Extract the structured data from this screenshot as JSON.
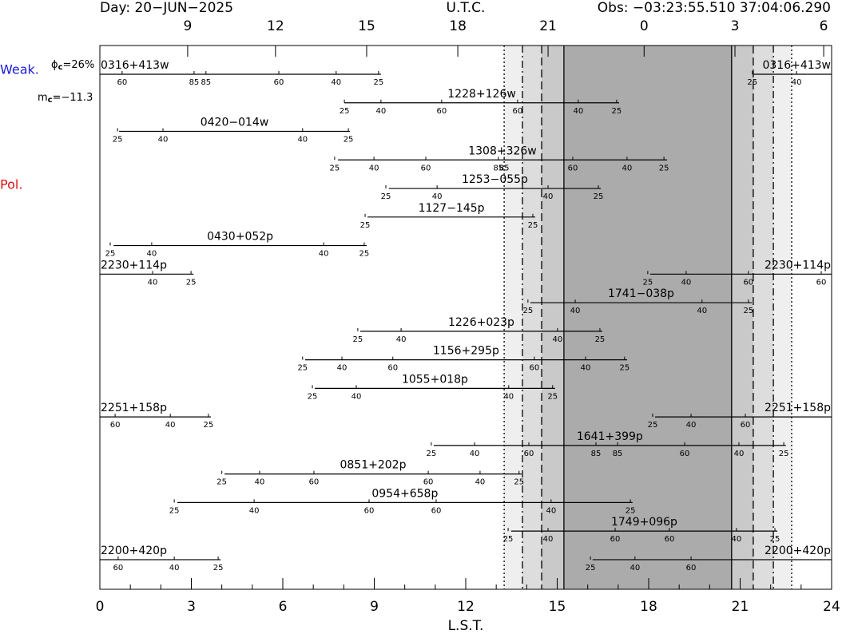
{
  "chart_data": {
    "type": "timeline",
    "header": {
      "day": "Day: 20−JUN−2025",
      "utc": "U.T.C.",
      "obs": "Obs: −03:23:55.510 37:04:06.290"
    },
    "side": {
      "weak": "Weak.",
      "pol": "Pol.",
      "phase_symbol": "ϕ",
      "phase_sub": "c",
      "phase_value": "=26%",
      "mag_symbol": "m",
      "mag_sub": "c",
      "mag_value": "=−11.3"
    },
    "xlabel": "L.S.T.",
    "xlim": [
      0,
      24
    ],
    "xticks": [
      0,
      3,
      6,
      9,
      12,
      15,
      18,
      21,
      24
    ],
    "x2ticks": [
      {
        "value": 2.88,
        "label": "9"
      },
      {
        "value": 5.76,
        "label": "12"
      },
      {
        "value": 8.75,
        "label": "15"
      },
      {
        "value": 11.74,
        "label": "18"
      },
      {
        "value": 14.7,
        "label": "21"
      },
      {
        "value": 17.85,
        "label": "0"
      },
      {
        "value": 20.83,
        "label": "3"
      },
      {
        "value": 23.74,
        "label": "6"
      }
    ],
    "bands": [
      {
        "range": [
          13.26,
          22.69
        ],
        "color": "#efefef",
        "edge": "dotted"
      },
      {
        "range": [
          13.86,
          22.09
        ],
        "color": "#dddddd",
        "edge": "dashdot"
      },
      {
        "range": [
          14.49,
          21.43
        ],
        "color": "#c9c9c9",
        "edge": "dashed"
      },
      {
        "range": [
          15.22,
          20.72
        ],
        "color": "#ababab",
        "edge": "solid"
      }
    ],
    "rows": [
      {
        "name": "0316+413w",
        "segments": [
          [
            0,
            9.22
          ],
          [
            21.43,
            24
          ]
        ],
        "marks": [
          {
            "lst": 0.73,
            "elev": 60
          },
          {
            "lst": 3.09,
            "elev": 85
          },
          {
            "lst": 3.48,
            "elev": 85
          },
          {
            "lst": 5.87,
            "elev": 60
          },
          {
            "lst": 7.75,
            "elev": 40
          },
          {
            "lst": 9.14,
            "elev": 25
          },
          {
            "lst": 21.4,
            "elev": 25
          },
          {
            "lst": 22.85,
            "elev": 40
          }
        ]
      },
      {
        "name": "1228+126w",
        "segments": [
          [
            8.02,
            17.03
          ]
        ],
        "marks": [
          {
            "lst": 8.02,
            "elev": 25
          },
          {
            "lst": 9.22,
            "elev": 40
          },
          {
            "lst": 11.21,
            "elev": 60
          },
          {
            "lst": 13.7,
            "elev": 60
          },
          {
            "lst": 15.69,
            "elev": 40
          },
          {
            "lst": 16.95,
            "elev": 25
          }
        ]
      },
      {
        "name": "0420−014w",
        "segments": [
          [
            0.63,
            8.2
          ]
        ],
        "marks": [
          {
            "lst": 0.58,
            "elev": 25
          },
          {
            "lst": 2.07,
            "elev": 40
          },
          {
            "lst": 6.65,
            "elev": 40
          },
          {
            "lst": 8.15,
            "elev": 25
          }
        ]
      },
      {
        "name": "1308+326w",
        "segments": [
          [
            7.81,
            18.6
          ]
        ],
        "marks": [
          {
            "lst": 7.7,
            "elev": 25
          },
          {
            "lst": 8.99,
            "elev": 40
          },
          {
            "lst": 10.69,
            "elev": 60
          },
          {
            "lst": 13.07,
            "elev": 85
          },
          {
            "lst": 13.26,
            "elev": 85
          },
          {
            "lst": 15.51,
            "elev": 60
          },
          {
            "lst": 17.29,
            "elev": 40
          },
          {
            "lst": 18.5,
            "elev": 25
          }
        ]
      },
      {
        "name": "1253−055p",
        "segments": [
          [
            9.48,
            16.43
          ]
        ],
        "marks": [
          {
            "lst": 9.38,
            "elev": 25
          },
          {
            "lst": 11.06,
            "elev": 40
          },
          {
            "lst": 14.7,
            "elev": 40
          },
          {
            "lst": 16.35,
            "elev": 25
          }
        ]
      },
      {
        "name": "1127−145p",
        "segments": [
          [
            8.78,
            14.28
          ]
        ],
        "marks": [
          {
            "lst": 8.7,
            "elev": 25
          },
          {
            "lst": 14.2,
            "elev": 25
          }
        ]
      },
      {
        "name": "0430+052p",
        "segments": [
          [
            0.45,
            8.75
          ]
        ],
        "marks": [
          {
            "lst": 0.34,
            "elev": 25
          },
          {
            "lst": 1.7,
            "elev": 40
          },
          {
            "lst": 7.34,
            "elev": 40
          },
          {
            "lst": 8.67,
            "elev": 25
          }
        ]
      },
      {
        "name": "2230+114p",
        "segments": [
          [
            0,
            3.07
          ],
          [
            18.05,
            24
          ]
        ],
        "marks": [
          {
            "lst": 1.73,
            "elev": 40
          },
          {
            "lst": 2.99,
            "elev": 25
          },
          {
            "lst": 17.97,
            "elev": 25
          },
          {
            "lst": 19.23,
            "elev": 40
          },
          {
            "lst": 21.27,
            "elev": 60
          },
          {
            "lst": 23.66,
            "elev": 60
          }
        ]
      },
      {
        "name": "1741−038p",
        "segments": [
          [
            14.12,
            21.38
          ]
        ],
        "marks": [
          {
            "lst": 14.04,
            "elev": 25
          },
          {
            "lst": 15.59,
            "elev": 40
          },
          {
            "lst": 19.75,
            "elev": 40
          },
          {
            "lst": 21.27,
            "elev": 25
          }
        ]
      },
      {
        "name": "1226+023p",
        "segments": [
          [
            8.54,
            16.48
          ]
        ],
        "marks": [
          {
            "lst": 8.46,
            "elev": 25
          },
          {
            "lst": 9.88,
            "elev": 40
          },
          {
            "lst": 15.01,
            "elev": 40
          },
          {
            "lst": 16.4,
            "elev": 25
          }
        ]
      },
      {
        "name": "1156+295p",
        "segments": [
          [
            6.73,
            17.29
          ]
        ],
        "marks": [
          {
            "lst": 6.65,
            "elev": 25
          },
          {
            "lst": 7.94,
            "elev": 40
          },
          {
            "lst": 9.61,
            "elev": 60
          },
          {
            "lst": 14.25,
            "elev": 60
          },
          {
            "lst": 15.93,
            "elev": 40
          },
          {
            "lst": 17.21,
            "elev": 25
          }
        ]
      },
      {
        "name": "1055+018p",
        "segments": [
          [
            7.05,
            14.93
          ]
        ],
        "marks": [
          {
            "lst": 6.97,
            "elev": 25
          },
          {
            "lst": 8.41,
            "elev": 40
          },
          {
            "lst": 13.41,
            "elev": 40
          },
          {
            "lst": 14.85,
            "elev": 25
          }
        ]
      },
      {
        "name": "2251+158p",
        "segments": [
          [
            0,
            3.64
          ],
          [
            18.21,
            24
          ]
        ],
        "marks": [
          {
            "lst": 0.5,
            "elev": 60
          },
          {
            "lst": 2.31,
            "elev": 40
          },
          {
            "lst": 3.56,
            "elev": 25
          },
          {
            "lst": 18.13,
            "elev": 25
          },
          {
            "lst": 19.39,
            "elev": 40
          },
          {
            "lst": 21.17,
            "elev": 60
          }
        ]
      },
      {
        "name": "1641+399p",
        "segments": [
          [
            10.95,
            22.5
          ]
        ],
        "marks": [
          {
            "lst": 10.87,
            "elev": 25
          },
          {
            "lst": 12.29,
            "elev": 40
          },
          {
            "lst": 14.07,
            "elev": 60
          },
          {
            "lst": 16.27,
            "elev": 85
          },
          {
            "lst": 16.98,
            "elev": 85
          },
          {
            "lst": 19.18,
            "elev": 60
          },
          {
            "lst": 20.96,
            "elev": 40
          },
          {
            "lst": 22.43,
            "elev": 25
          }
        ]
      },
      {
        "name": "0851+202p",
        "segments": [
          [
            4.09,
            13.83
          ]
        ],
        "marks": [
          {
            "lst": 4.0,
            "elev": 25
          },
          {
            "lst": 5.24,
            "elev": 40
          },
          {
            "lst": 7.02,
            "elev": 60
          },
          {
            "lst": 10.77,
            "elev": 60
          },
          {
            "lst": 12.47,
            "elev": 40
          },
          {
            "lst": 13.75,
            "elev": 25
          }
        ]
      },
      {
        "name": "0954+658p",
        "segments": [
          [
            2.54,
            17.47
          ]
        ],
        "marks": [
          {
            "lst": 2.44,
            "elev": 25
          },
          {
            "lst": 5.06,
            "elev": 40
          },
          {
            "lst": 8.83,
            "elev": 60
          },
          {
            "lst": 11.03,
            "elev": 60
          },
          {
            "lst": 14.8,
            "elev": 40
          },
          {
            "lst": 17.4,
            "elev": 25
          }
        ]
      },
      {
        "name": "1749+096p",
        "segments": [
          [
            13.49,
            22.22
          ]
        ],
        "marks": [
          {
            "lst": 13.39,
            "elev": 25
          },
          {
            "lst": 14.7,
            "elev": 40
          },
          {
            "lst": 16.9,
            "elev": 60
          },
          {
            "lst": 18.68,
            "elev": 60
          },
          {
            "lst": 20.88,
            "elev": 40
          },
          {
            "lst": 22.14,
            "elev": 25
          }
        ]
      },
      {
        "name": "2200+420p",
        "segments": [
          [
            0,
            3.96
          ],
          [
            16.16,
            24
          ]
        ],
        "marks": [
          {
            "lst": 0.6,
            "elev": 60
          },
          {
            "lst": 2.44,
            "elev": 40
          },
          {
            "lst": 3.88,
            "elev": 25
          },
          {
            "lst": 16.09,
            "elev": 25
          },
          {
            "lst": 17.55,
            "elev": 40
          },
          {
            "lst": 19.39,
            "elev": 60
          }
        ]
      }
    ]
  }
}
